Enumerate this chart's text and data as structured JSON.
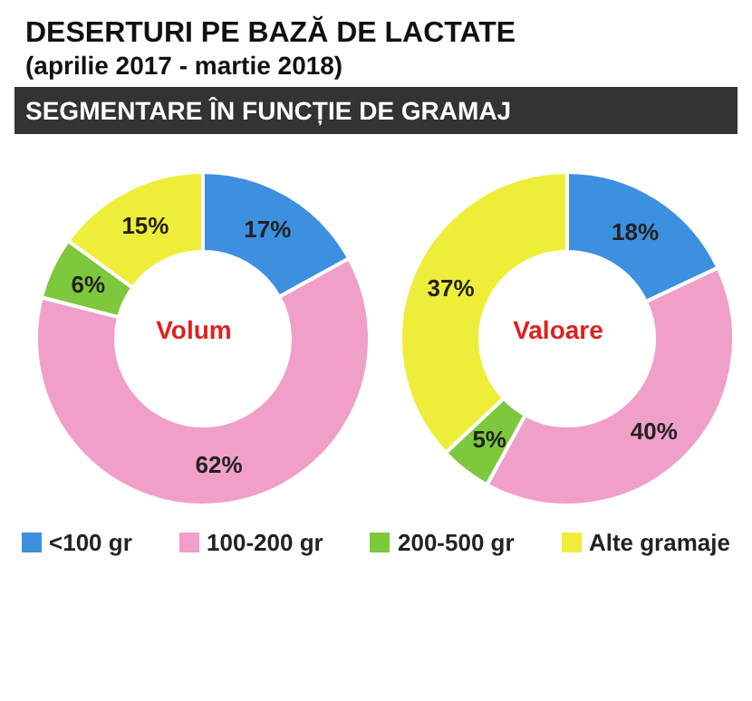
{
  "chart_data": [
    {
      "type": "donut",
      "title": "DESERTURI PE BAZĂ DE LACTATE",
      "subtitle": "(aprilie 2017 - martie 2018)",
      "annotations": [
        "SEGMENTARE ÎN FUNCȚIE DE GRAMAJ",
        "Volum"
      ],
      "categories": [
        "<100 gr",
        "100-200 gr",
        "200-500 gr",
        "Alte gramaje"
      ],
      "values": [
        17,
        62,
        6,
        15
      ],
      "value_labels": [
        "17%",
        "62%",
        "6%",
        "15%"
      ],
      "colors": [
        "#3d8fe0",
        "#f0a0c8",
        "#7dc83c",
        "#eeee3a"
      ],
      "legend": "bottom"
    },
    {
      "type": "donut",
      "annotations": [
        "Valoare"
      ],
      "categories": [
        null,
        null,
        null,
        null
      ],
      "values": [
        18,
        40,
        5,
        37
      ],
      "value_labels": [
        "18%",
        "40%",
        "5%",
        "37%"
      ],
      "colors": [
        "#3d8fe0",
        "#f0a0c8",
        "#7dc83c",
        "#eeee3a"
      ]
    }
  ]
}
